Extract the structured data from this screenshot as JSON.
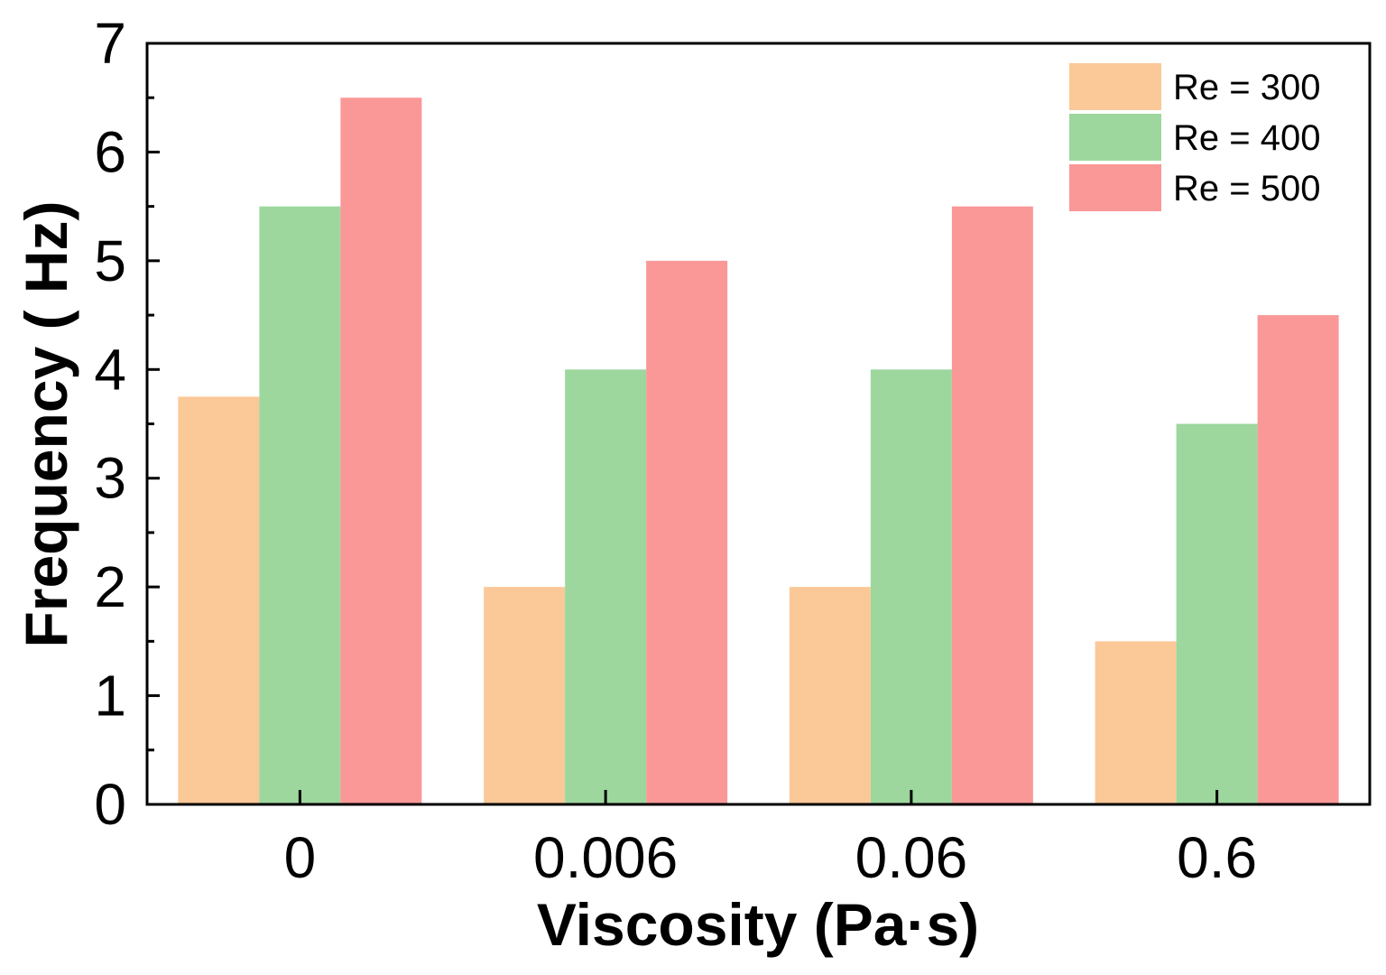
{
  "chart_data": {
    "type": "bar",
    "categories": [
      "0",
      "0.006",
      "0.06",
      "0.6"
    ],
    "series": [
      {
        "name": "Re = 300",
        "values": [
          3.75,
          2.0,
          2.0,
          1.5
        ],
        "color": "#fbc898"
      },
      {
        "name": "Re = 400",
        "values": [
          5.5,
          4.0,
          4.0,
          3.5
        ],
        "color": "#9dd79e"
      },
      {
        "name": "Re = 500",
        "values": [
          6.5,
          5.0,
          5.5,
          4.5
        ],
        "color": "#fa9898"
      }
    ],
    "xlabel": "Viscosity (Pa·s)",
    "ylabel": "Frequency ( Hz)",
    "ylim": [
      0,
      7
    ],
    "yticks": [
      "0",
      "1",
      "2",
      "3",
      "4",
      "5",
      "6",
      "7"
    ],
    "grid": false,
    "legend_position": "top-right"
  }
}
